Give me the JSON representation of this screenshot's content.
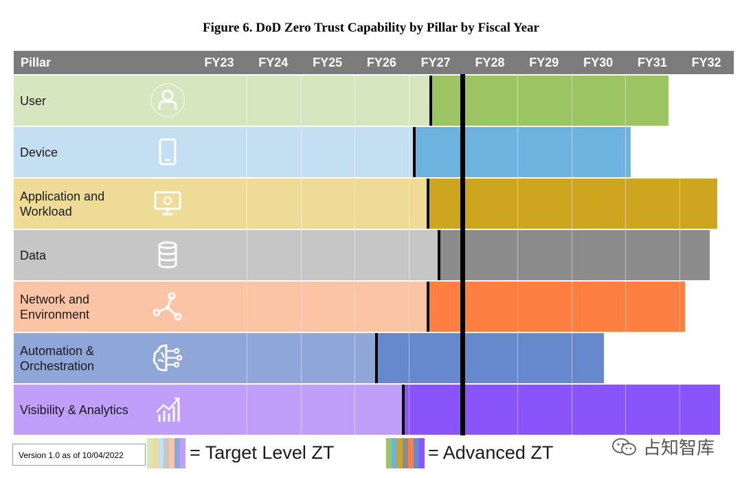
{
  "title": "Figure 6. DoD Zero Trust Capability by Pillar by Fiscal Year",
  "chart_data": {
    "type": "bar",
    "header_label": "Pillar",
    "x_categories": [
      "FY23",
      "FY24",
      "FY25",
      "FY26",
      "FY27",
      "FY28",
      "FY29",
      "FY30",
      "FY31",
      "FY32"
    ],
    "series_legend": [
      {
        "name": "= Target Level ZT"
      },
      {
        "name": "= Advanced ZT"
      }
    ],
    "rows": [
      {
        "pillar": "User",
        "icon": "user-icon",
        "target_end": 4.4,
        "advanced_end": 8.8,
        "light": "#d6e7bf",
        "dark": "#9cc463"
      },
      {
        "pillar": "Device",
        "icon": "tablet-icon",
        "target_end": 4.1,
        "advanced_end": 8.1,
        "light": "#c4dff2",
        "dark": "#6db3df"
      },
      {
        "pillar": "Application and Workload",
        "icon": "monitor-gear-icon",
        "target_end": 4.35,
        "advanced_end": 9.7,
        "light": "#eedb95",
        "dark": "#cea51e"
      },
      {
        "pillar": "Data",
        "icon": "database-icon",
        "target_end": 4.55,
        "advanced_end": 9.55,
        "light": "#c6c6c6",
        "dark": "#8c8c8c"
      },
      {
        "pillar": "Network and Environment",
        "icon": "network-icon",
        "target_end": 4.35,
        "advanced_end": 9.1,
        "light": "#fbc4a4",
        "dark": "#fe7f3f"
      },
      {
        "pillar": "Automation & Orchestration",
        "icon": "brain-circuit-icon",
        "target_end": 3.4,
        "advanced_end": 7.6,
        "light": "#8fa6d9",
        "dark": "#6688cc"
      },
      {
        "pillar": "Visibility & Analytics",
        "icon": "analytics-icon",
        "target_end": 3.9,
        "advanced_end": 9.75,
        "light": "#bf9ff9",
        "dark": "#8a54fb"
      }
    ],
    "current_marker": "FY28 start"
  },
  "legend_colors": {
    "target": [
      "#d6e7bf",
      "#eedb95",
      "#c4dff2",
      "#c6c6c6",
      "#fbc4a4",
      "#8fa6d9",
      "#bf9ff9"
    ],
    "advanced": [
      "#9cc463",
      "#6db3df",
      "#cea51e",
      "#8c8c8c",
      "#fe7f3f",
      "#6688cc",
      "#8a54fb"
    ]
  },
  "footer": {
    "version": "Version 1.0 as of 10/04/2022",
    "watermark": "占知智库"
  }
}
